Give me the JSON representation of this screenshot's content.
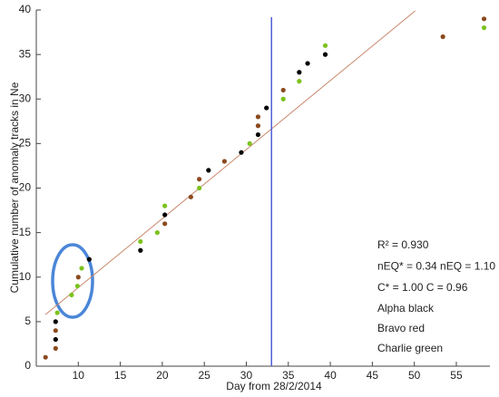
{
  "chart_data": {
    "type": "scatter",
    "x_label": "Day from 28/2/2014",
    "y_label": "Cumulative number of anomaly tracks in Ne",
    "xlim": [
      5,
      59
    ],
    "ylim": [
      0,
      40
    ],
    "xticks": [
      10,
      15,
      20,
      25,
      30,
      35,
      40,
      45,
      50,
      55
    ],
    "yticks": [
      0,
      5,
      10,
      15,
      20,
      25,
      30,
      35,
      40
    ],
    "series": [
      {
        "name": "Alpha black",
        "color": "#000000",
        "x": [
          7.3,
          7.3,
          11.3,
          17.4,
          20.3,
          25.5,
          29.4,
          31.4,
          32.4,
          36.3,
          37.3,
          39.4
        ],
        "values": [
          3,
          5,
          12,
          13,
          17,
          22,
          24,
          26,
          29,
          33,
          34,
          35
        ]
      },
      {
        "name": "Bravo red",
        "color": "#8b4a1e",
        "x": [
          6.1,
          7.3,
          7.3,
          10,
          20.3,
          23.4,
          24.4,
          27.4,
          31.4,
          31.4,
          34.4,
          53.4,
          58.3
        ],
        "values": [
          1,
          2,
          4,
          10,
          16,
          19,
          21,
          23,
          27,
          28,
          31,
          37,
          39
        ]
      },
      {
        "name": "Charlie green",
        "color": "#7cc21e",
        "x": [
          7.5,
          9.2,
          9.9,
          10.4,
          17.4,
          19.4,
          20.3,
          24.4,
          30.4,
          34.4,
          36.3,
          39.4,
          58.3
        ],
        "values": [
          6,
          8,
          9,
          11,
          14,
          15,
          18,
          20,
          25,
          30,
          32,
          36,
          38
        ]
      }
    ],
    "trendline": {
      "color": "#c8866a",
      "x": [
        6.1,
        50.1
      ],
      "values": [
        5.8,
        39.9
      ]
    },
    "vline": {
      "color": "#4f5fd6",
      "x": 33
    },
    "annotations": [
      "R² = 0.930",
      "nEQ* = 0.34 nEQ = 1.10",
      "C* = 1.00 C = 0.96"
    ]
  }
}
